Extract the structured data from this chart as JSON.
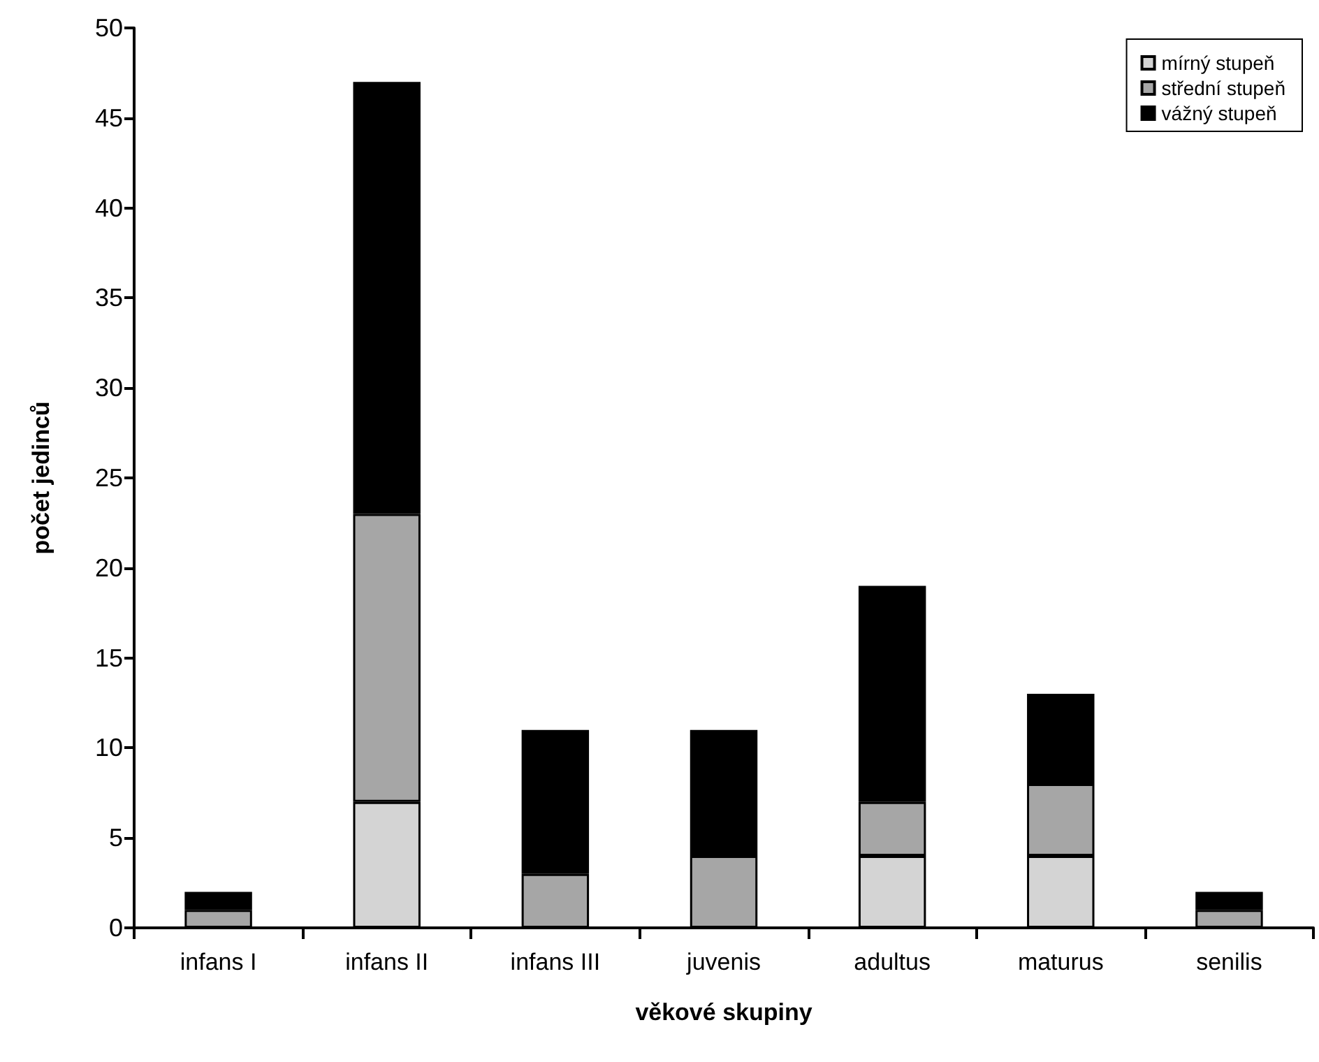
{
  "chart_data": {
    "type": "bar",
    "stacked": true,
    "xlabel": "věkové skupiny",
    "ylabel": "počet jedinců",
    "categories": [
      "infans I",
      "infans II",
      "infans III",
      "juvenis",
      "adultus",
      "maturus",
      "senilis"
    ],
    "series": [
      {
        "name": "mírný stupeň",
        "color": "#d4d4d4",
        "values": [
          0,
          7,
          0,
          0,
          4,
          4,
          0
        ]
      },
      {
        "name": "střední stupeň",
        "color": "#a6a6a6",
        "values": [
          1,
          16,
          3,
          4,
          3,
          4,
          1
        ]
      },
      {
        "name": "vážný stupeň",
        "color": "#000000",
        "values": [
          1,
          24,
          8,
          7,
          12,
          5,
          1
        ]
      }
    ],
    "ylim": [
      0,
      50
    ],
    "yticks": [
      0,
      5,
      10,
      15,
      20,
      25,
      30,
      35,
      40,
      45,
      50
    ],
    "grid": false,
    "legend": "top right"
  }
}
